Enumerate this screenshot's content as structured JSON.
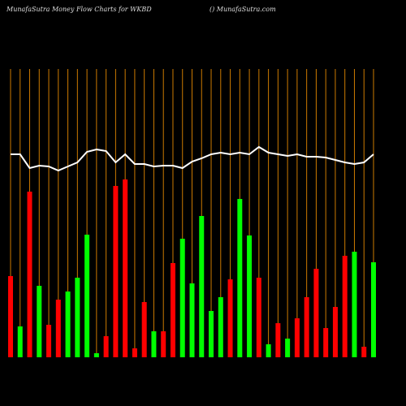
{
  "chart_data": {
    "type": "bar",
    "title": "MunafaSutra  Money Flow  Charts for WKBD",
    "subtitle": "() MunafaSutra.com",
    "categories": [
      null,
      null,
      null,
      null,
      null,
      null,
      null,
      null,
      null,
      null,
      null,
      null,
      null,
      null,
      null,
      null,
      null,
      null,
      null,
      null,
      null,
      null,
      null,
      null,
      null,
      null,
      null,
      null,
      null,
      null,
      null,
      null,
      null,
      null,
      null,
      null,
      null,
      null,
      null
    ],
    "values": [
      100,
      38,
      204,
      88,
      40,
      71,
      81,
      98,
      151,
      5,
      26,
      211,
      219,
      11,
      68,
      32,
      32,
      116,
      146,
      91,
      174,
      57,
      74,
      96,
      195,
      150,
      98,
      16,
      42,
      23,
      48,
      74,
      109,
      36,
      62,
      125,
      130,
      13,
      117
    ],
    "bar_colors": [
      "#ff0000",
      "#00ff00",
      "#ff0000",
      "#00ff00",
      "#ff0000",
      "#ff0000",
      "#00ff00",
      "#00ff00",
      "#00ff00",
      "#00ff00",
      "#ff0000",
      "#ff0000",
      "#ff0000",
      "#ff0000",
      "#ff0000",
      "#00ff00",
      "#ff0000",
      "#ff0000",
      "#00ff00",
      "#00ff00",
      "#00ff00",
      "#00ff00",
      "#00ff00",
      "#ff0000",
      "#00ff00",
      "#00ff00",
      "#ff0000",
      "#00ff00",
      "#ff0000",
      "#00ff00",
      "#ff0000",
      "#ff0000",
      "#ff0000",
      "#ff0000",
      "#ff0000",
      "#ff0000",
      "#00ff00",
      "#ff0000",
      "#00ff00"
    ],
    "line_values": [
      250,
      250,
      233,
      236,
      235,
      230,
      235,
      240,
      253,
      256,
      254,
      240,
      250,
      238,
      238,
      235,
      236,
      236,
      233,
      241,
      245,
      250,
      252,
      250,
      252,
      250,
      259,
      252,
      250,
      248,
      250,
      247,
      247,
      246,
      243,
      240,
      238,
      240,
      250
    ],
    "line_color": "#ffffff",
    "category_line_color": "#cc7a00",
    "ylim": [
      0,
      360
    ]
  }
}
